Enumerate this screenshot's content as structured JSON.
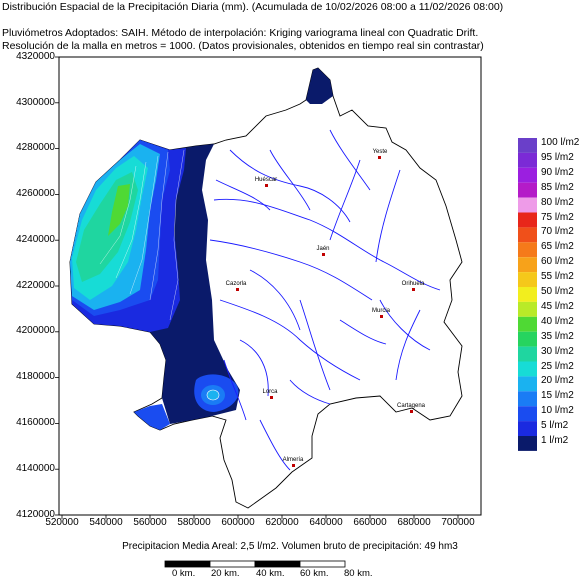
{
  "header": {
    "title": "Distribución Espacial de la Precipitación Diaria (mm). (Acumulada de 10/02/2026 08:00 a 11/02/2026 08:00)",
    "line2": "Pluviómetros Adoptados: SAIH.  Método de interpolación: Kriging variograma lineal con Quadratic Drift.",
    "line3": "Resolución de la malla en metros = 1000. (Datos provisionales, obtenidos en tiempo real sin contrastar)"
  },
  "axes": {
    "y_ticks": [
      "4320000",
      "4300000",
      "4280000",
      "4260000",
      "4240000",
      "4220000",
      "4200000",
      "4180000",
      "4160000",
      "4140000",
      "4120000"
    ],
    "x_ticks": [
      "520000",
      "540000",
      "560000",
      "580000",
      "600000",
      "620000",
      "640000",
      "660000",
      "680000",
      "700000"
    ]
  },
  "legend": {
    "items": [
      {
        "label": "100 l/m2",
        "color": "#6a3fc9"
      },
      {
        "label": "95 l/m2",
        "color": "#7b2ad6"
      },
      {
        "label": "90 l/m2",
        "color": "#9b1fe0"
      },
      {
        "label": "85 l/m2",
        "color": "#b41bc8"
      },
      {
        "label": "80 l/m2",
        "color": "#ee9be8"
      },
      {
        "label": "75 l/m2",
        "color": "#e8261a"
      },
      {
        "label": "70 l/m2",
        "color": "#f0501a"
      },
      {
        "label": "65 l/m2",
        "color": "#f57a1a"
      },
      {
        "label": "60 l/m2",
        "color": "#f7a21a"
      },
      {
        "label": "55 l/m2",
        "color": "#f5c81a"
      },
      {
        "label": "50 l/m2",
        "color": "#f2ee1e"
      },
      {
        "label": "45 l/m2",
        "color": "#b9ea28"
      },
      {
        "label": "40 l/m2",
        "color": "#4fd934"
      },
      {
        "label": "35 l/m2",
        "color": "#26d45f"
      },
      {
        "label": "30 l/m2",
        "color": "#1fd6a0"
      },
      {
        "label": "25 l/m2",
        "color": "#17dcd6"
      },
      {
        "label": "20 l/m2",
        "color": "#1ab2f0"
      },
      {
        "label": "15 l/m2",
        "color": "#1a7cf5"
      },
      {
        "label": "10 l/m2",
        "color": "#1a4cf0"
      },
      {
        "label": "5 l/m2",
        "color": "#1a2ae0"
      },
      {
        "label": "1 l/m2",
        "color": "#0a1a6a"
      }
    ]
  },
  "footer": {
    "summary": "Precipitacion Media Areal: 2,5 l/m2. Volumen bruto de precipitación: 49 hm3"
  },
  "scale_bar": {
    "labels": [
      "0 km.",
      "20 km.",
      "40 km.",
      "60 km.",
      "80 km."
    ]
  },
  "cities": [
    {
      "name": "Yeste"
    },
    {
      "name": "Huéscar"
    },
    {
      "name": "Jaén"
    },
    {
      "name": "Cazorla"
    },
    {
      "name": "Orihuela"
    },
    {
      "name": "Murcia"
    },
    {
      "name": "Lorca"
    },
    {
      "name": "Cartagena"
    },
    {
      "name": "Almería"
    }
  ]
}
